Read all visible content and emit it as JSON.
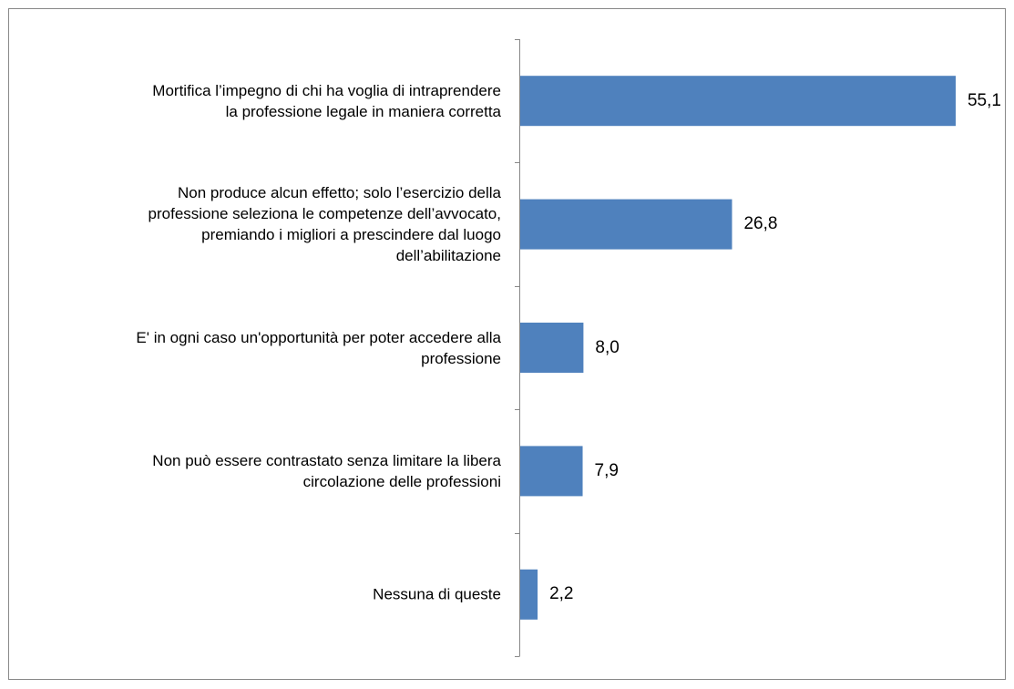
{
  "chart_data": {
    "type": "hbar",
    "categories": [
      "Mortifica l’impegno di chi ha voglia di intraprendere\nla professione legale in maniera corretta",
      "Non produce alcun effetto; solo l’esercizio della\nprofessione seleziona le competenze dell’avvocato,\npremiando i migliori a prescindere dal luogo\ndell’abilitazione",
      "E' in ogni caso un'opportunità per poter accedere alla\nprofessione",
      "Non può essere contrastato senza limitare la libera\ncircolazione delle professioni",
      "Nessuna di queste"
    ],
    "values": [
      55.1,
      26.8,
      8.0,
      7.9,
      2.2
    ],
    "value_labels": [
      "55,1",
      "26,8",
      "8,0",
      "7,9",
      "2,2"
    ],
    "color": "#4f81bd",
    "xlim": [
      0,
      60
    ]
  }
}
